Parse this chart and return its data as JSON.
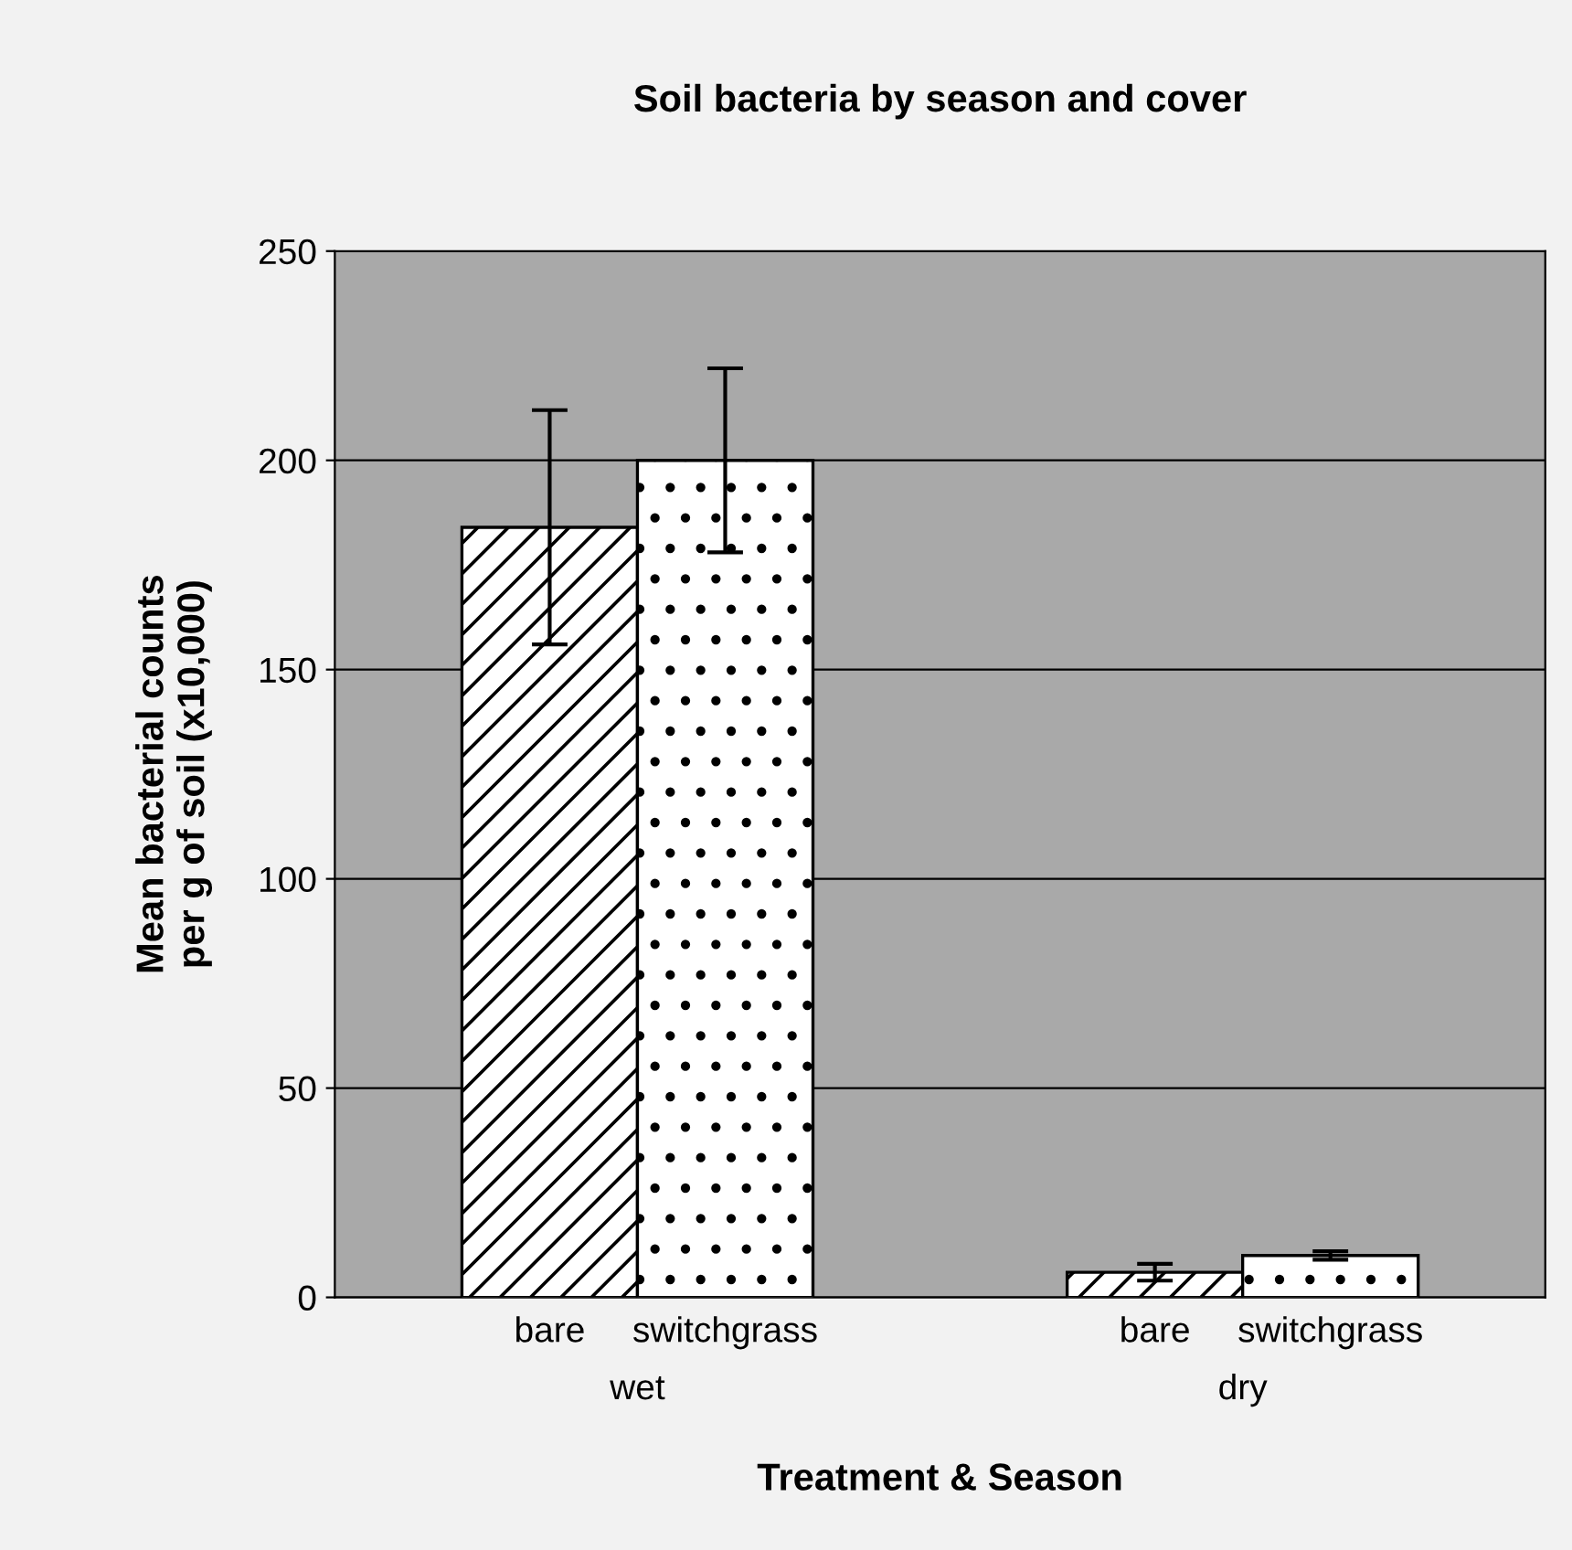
{
  "chart_data": {
    "type": "bar",
    "title": "Soil bacteria by season and cover",
    "xlabel": "Treatment & Season",
    "ylabel": "Mean bacterial counts\nper g of soil (x10,000)",
    "categories": [
      "wet",
      "dry"
    ],
    "series": [
      {
        "name": "bare",
        "color": "#ffffff",
        "values": [
          184,
          6
        ],
        "errors": [
          28,
          2
        ]
      },
      {
        "name": "switchgrass",
        "color": "#ffffff",
        "values": [
          200,
          10
        ],
        "errors": [
          22,
          1
        ]
      }
    ],
    "ylim": [
      0,
      250
    ],
    "yticks": [
      0,
      50,
      100,
      150,
      200,
      250
    ],
    "grid": "y",
    "legend": false
  }
}
